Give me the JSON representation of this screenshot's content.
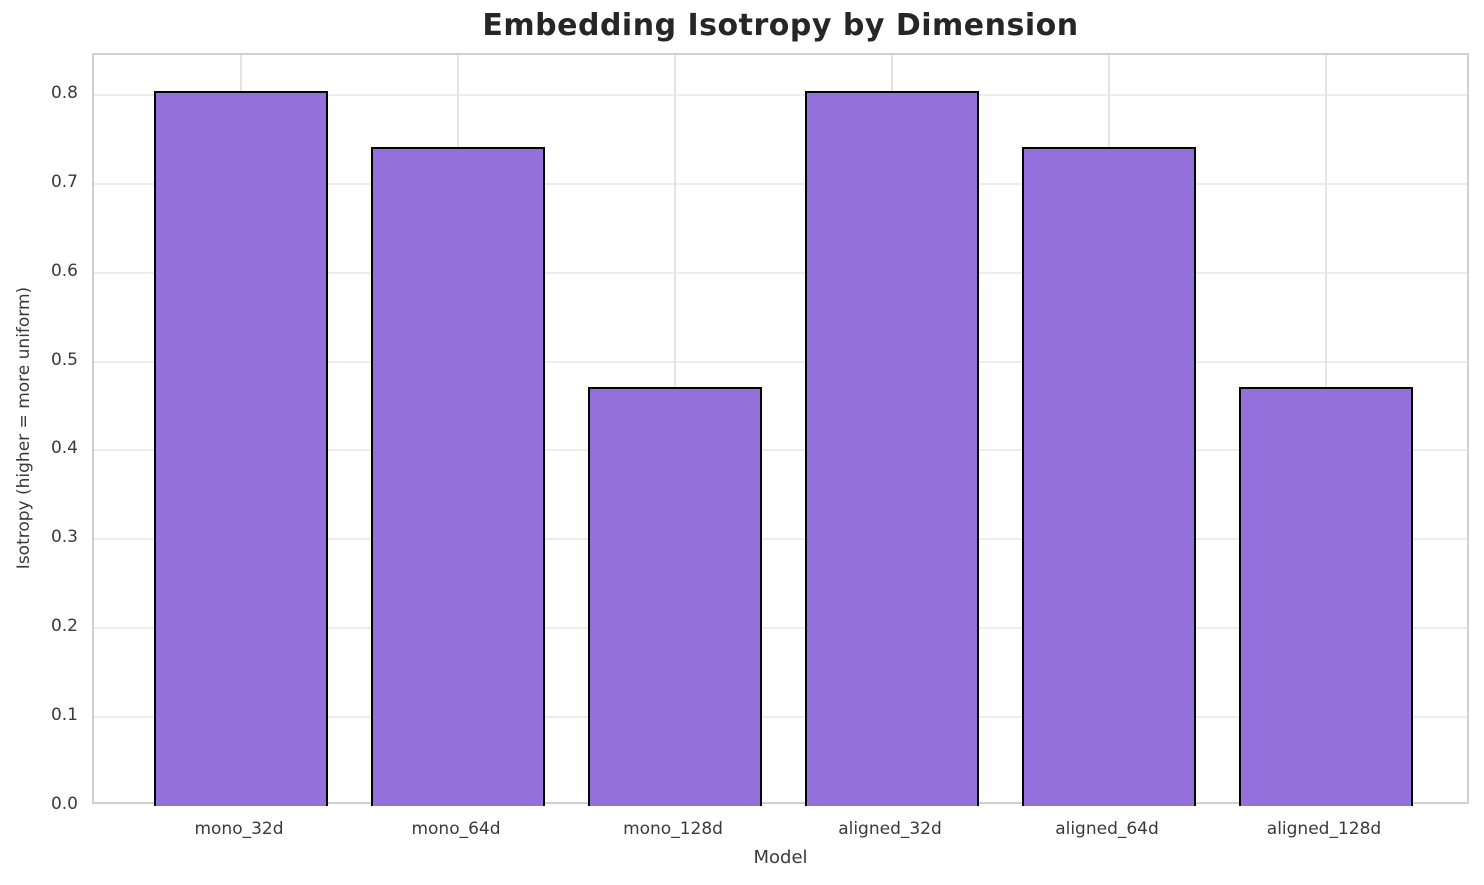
{
  "chart_data": {
    "type": "bar",
    "title": "Embedding Isotropy by Dimension",
    "xlabel": "Model",
    "ylabel": "Isotropy (higher = more uniform)",
    "categories": [
      "mono_32d",
      "mono_64d",
      "mono_128d",
      "aligned_32d",
      "aligned_64d",
      "aligned_128d"
    ],
    "values": [
      0.805,
      0.741,
      0.472,
      0.805,
      0.741,
      0.472
    ],
    "ylim": [
      0,
      0.845
    ],
    "yticks": [
      0.0,
      0.1,
      0.2,
      0.3,
      0.4,
      0.5,
      0.6,
      0.7,
      0.8
    ],
    "grid": "both",
    "legend": null,
    "colors": {
      "bar_fill": "#9370DB",
      "bar_edge": "#000000",
      "grid_h": "#ececec",
      "grid_v": "#e4e4e4",
      "spine": "#d0d0d0",
      "title_text": "#262626",
      "tick_text": "#3a3a3a"
    }
  }
}
